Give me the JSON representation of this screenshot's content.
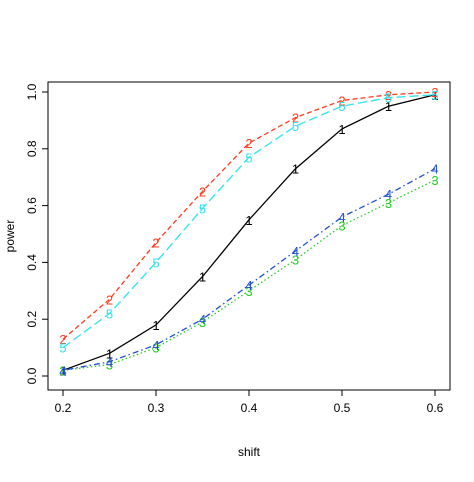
{
  "chart_data": {
    "type": "line",
    "title": "",
    "xlabel": "shift",
    "ylabel": "power",
    "xlim": [
      0.2,
      0.6
    ],
    "ylim": [
      0.0,
      1.0
    ],
    "x_ticks": [
      "0.2",
      "0.3",
      "0.4",
      "0.5",
      "0.6"
    ],
    "y_ticks": [
      "0.0",
      "0.2",
      "0.4",
      "0.6",
      "0.8",
      "1.0"
    ],
    "x": [
      0.2,
      0.25,
      0.3,
      0.35,
      0.4,
      0.45,
      0.5,
      0.55,
      0.6
    ],
    "grid": false,
    "series": [
      {
        "mark": "1",
        "color": "#000000",
        "line_style": "solid",
        "values": [
          0.02,
          0.08,
          0.18,
          0.35,
          0.55,
          0.73,
          0.87,
          0.95,
          0.99
        ]
      },
      {
        "mark": "2",
        "color": "#ff3b1f",
        "line_style": "dashed",
        "values": [
          0.13,
          0.27,
          0.47,
          0.65,
          0.82,
          0.91,
          0.97,
          0.99,
          1.0
        ]
      },
      {
        "mark": "3",
        "color": "#22cc22",
        "line_style": "dotted",
        "values": [
          0.02,
          0.04,
          0.1,
          0.19,
          0.3,
          0.41,
          0.53,
          0.61,
          0.69
        ]
      },
      {
        "mark": "4",
        "color": "#1f4fd6",
        "line_style": "dotdash",
        "values": [
          0.02,
          0.05,
          0.11,
          0.2,
          0.32,
          0.44,
          0.56,
          0.64,
          0.73
        ]
      },
      {
        "mark": "5",
        "color": "#2ee3f0",
        "line_style": "longdash",
        "values": [
          0.1,
          0.22,
          0.4,
          0.59,
          0.77,
          0.88,
          0.95,
          0.98,
          0.99
        ]
      }
    ]
  }
}
